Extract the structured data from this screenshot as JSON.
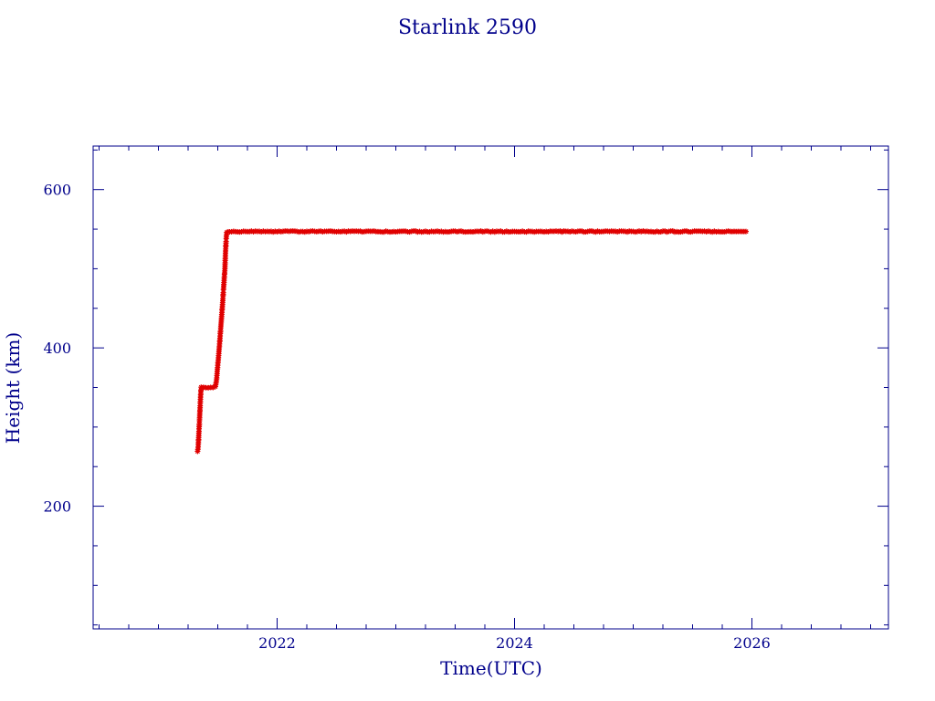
{
  "chart_data": {
    "type": "scatter",
    "title": "Starlink 2590",
    "xlabel": "Time(UTC)",
    "ylabel": "Height (km)",
    "xlim": [
      2020.45,
      2027.15
    ],
    "ylim": [
      45,
      655
    ],
    "x_ticks": [
      2022,
      2024,
      2026
    ],
    "x_tick_labels": [
      "2022",
      "2024",
      "2026"
    ],
    "y_ticks": [
      200,
      400,
      600
    ],
    "y_tick_labels": [
      "200",
      "400",
      "600"
    ],
    "grid": false,
    "colors": {
      "axes": "#00008b",
      "points": "#e00000",
      "accent": "#00e5ee"
    },
    "series": [
      {
        "values": [
          {
            "x": 2021.33,
            "y": 270
          },
          {
            "x": 2021.335,
            "y": 275
          },
          {
            "x": 2021.34,
            "y": 290
          },
          {
            "x": 2021.345,
            "y": 305
          },
          {
            "x": 2021.35,
            "y": 322
          },
          {
            "x": 2021.355,
            "y": 338
          },
          {
            "x": 2021.36,
            "y": 350
          },
          {
            "x": 2021.38,
            "y": 350
          },
          {
            "x": 2021.4,
            "y": 350
          },
          {
            "x": 2021.42,
            "y": 350
          },
          {
            "x": 2021.44,
            "y": 350
          },
          {
            "x": 2021.46,
            "y": 350
          },
          {
            "x": 2021.48,
            "y": 351
          },
          {
            "x": 2021.49,
            "y": 360
          },
          {
            "x": 2021.5,
            "y": 378
          },
          {
            "x": 2021.51,
            "y": 395
          },
          {
            "x": 2021.52,
            "y": 415
          },
          {
            "x": 2021.53,
            "y": 435
          },
          {
            "x": 2021.54,
            "y": 455
          },
          {
            "x": 2021.55,
            "y": 478
          },
          {
            "x": 2021.56,
            "y": 500
          },
          {
            "x": 2021.565,
            "y": 520
          },
          {
            "x": 2021.57,
            "y": 535
          },
          {
            "x": 2021.575,
            "y": 546
          },
          {
            "x": 2021.6,
            "y": 547
          },
          {
            "x": 2022.0,
            "y": 547
          },
          {
            "x": 2022.5,
            "y": 547
          },
          {
            "x": 2023.0,
            "y": 547
          },
          {
            "x": 2023.5,
            "y": 547
          },
          {
            "x": 2024.0,
            "y": 547
          },
          {
            "x": 2024.5,
            "y": 547
          },
          {
            "x": 2025.0,
            "y": 547
          },
          {
            "x": 2025.5,
            "y": 547
          },
          {
            "x": 2025.95,
            "y": 547
          }
        ]
      }
    ]
  }
}
